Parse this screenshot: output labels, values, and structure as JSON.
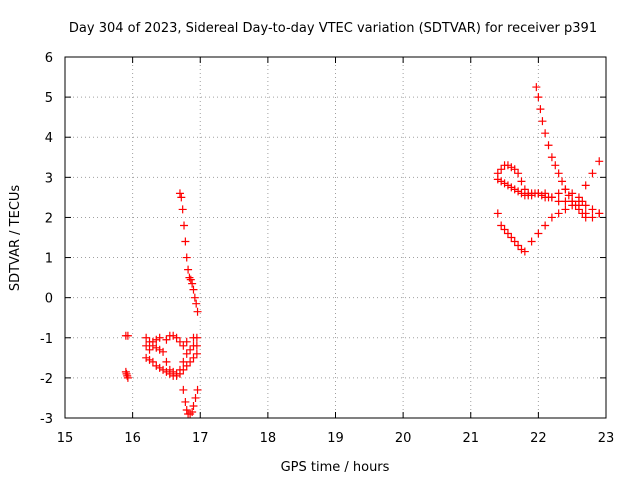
{
  "chart_data": {
    "type": "scatter",
    "title": "Day 304 of 2023, Sidereal Day-to-day VTEC variation (SDTVAR) for receiver p391",
    "xlabel": "GPS time / hours",
    "ylabel": "SDTVAR / TECUs",
    "xlim": [
      15,
      23
    ],
    "ylim": [
      -3,
      6
    ],
    "xticks": [
      15,
      16,
      17,
      18,
      19,
      20,
      21,
      22,
      23
    ],
    "yticks": [
      -3,
      -2,
      -1,
      0,
      1,
      2,
      3,
      4,
      5,
      6
    ],
    "grid": true,
    "marker": "plus",
    "color": "#ff0000",
    "series": [
      {
        "name": "p391",
        "x": [
          15.9,
          15.93,
          15.9,
          15.92,
          15.93,
          15.91,
          16.2,
          16.25,
          16.3,
          16.35,
          16.4,
          16.45,
          16.5,
          16.55,
          16.6,
          16.65,
          16.7,
          16.75,
          16.8,
          16.85,
          16.9,
          16.95,
          16.2,
          16.25,
          16.3,
          16.35,
          16.4,
          16.45,
          16.5,
          16.55,
          16.6,
          16.65,
          16.7,
          16.75,
          16.8,
          16.85,
          16.9,
          16.95,
          16.2,
          16.25,
          16.3,
          16.35,
          16.4,
          16.5,
          16.55,
          16.6,
          16.65,
          16.7,
          16.75,
          16.8,
          16.9,
          16.95,
          16.75,
          16.78,
          16.8,
          16.82,
          16.85,
          16.88,
          16.9,
          16.93,
          16.96,
          16.7,
          16.72,
          16.74,
          16.76,
          16.78,
          16.8,
          16.82,
          16.84,
          16.86,
          16.88,
          16.9,
          16.92,
          16.94,
          16.96,
          21.4,
          21.45,
          21.5,
          21.55,
          21.6,
          21.65,
          21.7,
          21.75,
          21.8,
          21.85,
          21.9,
          21.95,
          22.0,
          22.05,
          22.1,
          22.15,
          22.2,
          22.3,
          22.4,
          22.5,
          22.6,
          22.7,
          22.8,
          22.9,
          21.4,
          21.45,
          21.5,
          21.55,
          21.6,
          21.65,
          21.7,
          21.75,
          21.8,
          21.85,
          21.9,
          22.0,
          22.1,
          22.2,
          22.3,
          22.4,
          22.5,
          22.6,
          22.7,
          22.8,
          22.9,
          21.4,
          21.45,
          21.5,
          21.55,
          21.6,
          21.65,
          21.7,
          21.75,
          21.8,
          21.9,
          22.0,
          22.1,
          22.2,
          22.3,
          22.4,
          22.5,
          22.6,
          22.65,
          22.7,
          22.8,
          22.9,
          21.97,
          22.0,
          22.03,
          22.06,
          22.1,
          22.15,
          22.2,
          22.25,
          22.3,
          22.35,
          22.4,
          22.45,
          22.5,
          22.55,
          22.6,
          22.65,
          22.7
        ],
        "y": [
          -0.95,
          -0.95,
          -1.85,
          -1.95,
          -2.0,
          -1.9,
          -1.0,
          -1.1,
          -1.2,
          -1.25,
          -1.3,
          -1.35,
          -1.6,
          -1.8,
          -1.85,
          -1.9,
          -1.8,
          -1.6,
          -1.4,
          -1.3,
          -1.2,
          -1.2,
          -1.5,
          -1.55,
          -1.6,
          -1.7,
          -1.75,
          -1.8,
          -1.85,
          -1.9,
          -1.95,
          -1.95,
          -1.9,
          -1.8,
          -1.7,
          -1.6,
          -1.5,
          -1.4,
          -1.2,
          -1.3,
          -1.1,
          -1.05,
          -1.0,
          -1.05,
          -0.95,
          -0.95,
          -1.0,
          -1.1,
          -1.2,
          -1.1,
          -1.0,
          -1.0,
          -2.3,
          -2.6,
          -2.8,
          -2.9,
          -2.9,
          -2.85,
          -2.7,
          -2.5,
          -2.3,
          2.6,
          2.5,
          2.2,
          1.8,
          1.4,
          1.0,
          0.7,
          0.5,
          0.45,
          0.35,
          0.2,
          0.0,
          -0.15,
          -0.35,
          3.1,
          3.2,
          3.3,
          3.3,
          3.25,
          3.2,
          3.1,
          2.9,
          2.7,
          2.55,
          2.55,
          2.6,
          2.6,
          2.55,
          2.5,
          2.5,
          2.5,
          2.6,
          2.7,
          2.6,
          2.3,
          2.1,
          2.0,
          2.1,
          2.95,
          2.9,
          2.85,
          2.8,
          2.75,
          2.7,
          2.65,
          2.6,
          2.55,
          2.6,
          2.6,
          2.6,
          2.6,
          2.5,
          2.4,
          2.4,
          2.4,
          2.5,
          2.8,
          3.1,
          3.4,
          2.1,
          1.8,
          1.7,
          1.6,
          1.5,
          1.4,
          1.3,
          1.2,
          1.15,
          1.4,
          1.6,
          1.8,
          2.0,
          2.1,
          2.2,
          2.3,
          2.4,
          2.4,
          2.3,
          2.2,
          2.1,
          5.25,
          5.0,
          4.7,
          4.4,
          4.1,
          3.8,
          3.5,
          3.3,
          3.1,
          2.9,
          2.7,
          2.55,
          2.4,
          2.3,
          2.2,
          2.1,
          2.0
        ]
      }
    ]
  }
}
